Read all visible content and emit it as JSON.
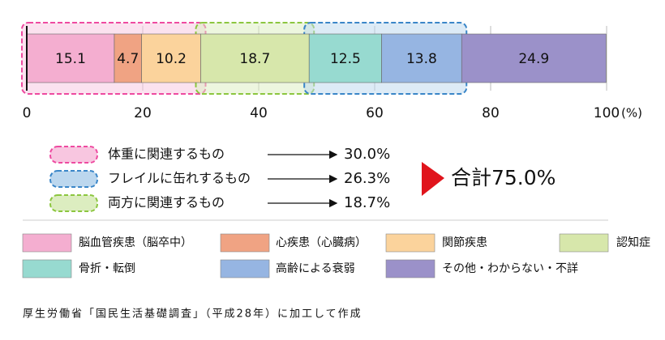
{
  "chart_data": {
    "type": "stacked-bar",
    "series": [
      {
        "name": "脳血管疾患（脳卒中）",
        "color": "#f4aed0",
        "values": [
          15.1
        ]
      },
      {
        "name": "心疾患（心臓病）",
        "color": "#f0a383",
        "values": [
          4.7
        ]
      },
      {
        "name": "関節疾患",
        "color": "#fbd39c",
        "values": [
          10.2
        ]
      },
      {
        "name": "認知症",
        "color": "#d7e7ab",
        "values": [
          18.7
        ]
      },
      {
        "name": "骨折・転倒",
        "color": "#97dad0",
        "values": [
          12.5
        ]
      },
      {
        "name": "高齢による衰弱",
        "color": "#96b5e2",
        "values": [
          13.8
        ]
      },
      {
        "name": "その他・わからない・不詳",
        "color": "#9b91c9",
        "values": [
          24.9
        ]
      }
    ],
    "xlim": [
      0,
      100
    ],
    "xticks": [
      0,
      20,
      40,
      60,
      80,
      100
    ],
    "x_unit": "(%)",
    "grid": true,
    "groups": [
      {
        "name": "体重に関連するもの",
        "color": "#ee4aa0",
        "fill": "#f8c6e0",
        "value": 30.0,
        "value_label": "30.0%"
      },
      {
        "name": "フレイルに缶れするもの",
        "color": "#3a86c8",
        "fill": "#bcd7ee",
        "value": 26.3,
        "value_label": "26.3%"
      },
      {
        "name": "両方に関連するもの",
        "color": "#8cc63f",
        "fill": "#dcedc0",
        "value": 18.7,
        "value_label": "18.7%"
      }
    ],
    "total_label": "合計75.0%",
    "source": "厚生労働省「国民生活基礎調査」（平成28年）に加工して作成"
  }
}
